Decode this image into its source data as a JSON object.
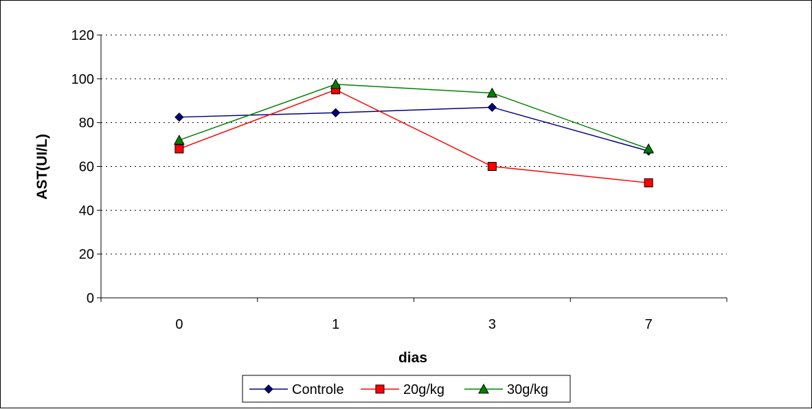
{
  "chart_data": {
    "type": "line",
    "title": "",
    "xlabel": "dias",
    "ylabel": "AST(UI/L)",
    "categories": [
      "0",
      "1",
      "3",
      "7"
    ],
    "ylim": [
      0,
      120
    ],
    "yticks": [
      0,
      20,
      40,
      60,
      80,
      100,
      120
    ],
    "yticks_labels": [
      "0",
      "20",
      "40",
      "60",
      "80",
      "100",
      "120"
    ],
    "grid": "horizontal dotted",
    "legend_position": "bottom",
    "series": [
      {
        "name": "Controle",
        "values": [
          82.5,
          84.5,
          87,
          67
        ],
        "color": "#000080",
        "marker": "diamond"
      },
      {
        "name": "20g/kg",
        "values": [
          68,
          95,
          60,
          52.5
        ],
        "color": "#ff0000",
        "marker": "square"
      },
      {
        "name": "30g/kg",
        "values": [
          72,
          97.5,
          93.5,
          68
        ],
        "color": "#008000",
        "marker": "triangle"
      }
    ]
  }
}
